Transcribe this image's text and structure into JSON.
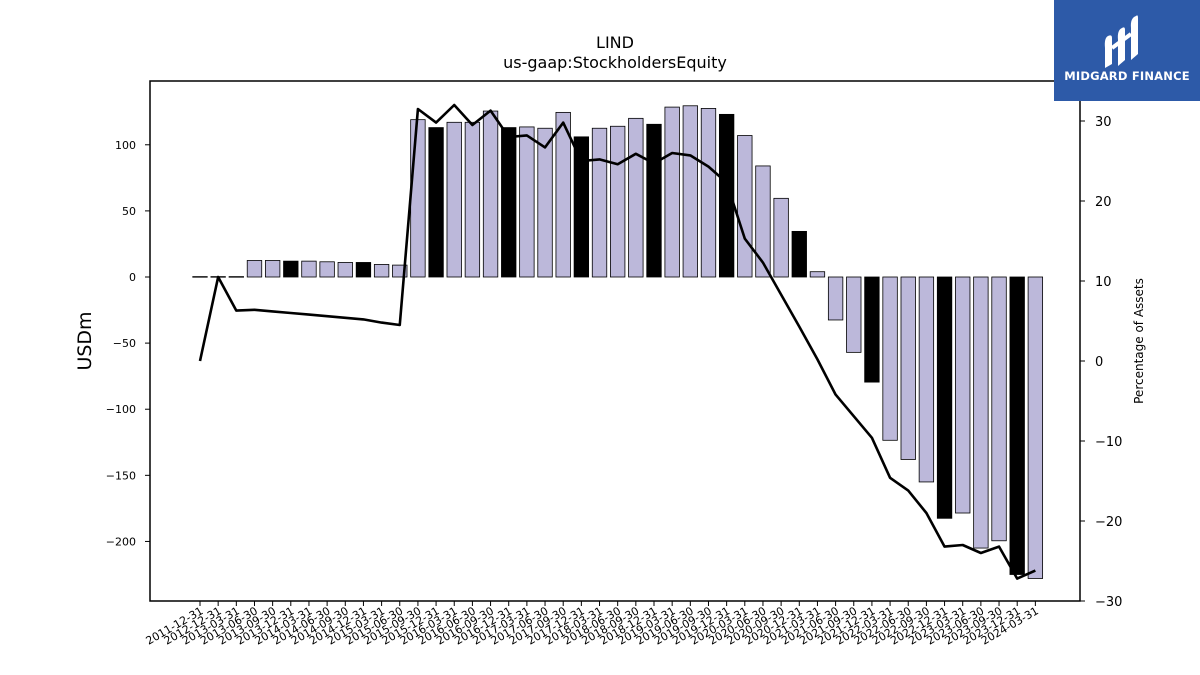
{
  "chart_data": {
    "type": "bar+line",
    "title": "LIND",
    "subtitle": "us-gaap:StockholdersEquity",
    "ylabel": "USDm",
    "y2label": "Percentage of Assets",
    "ylim": [
      -245,
      148
    ],
    "y2lim": [
      -30,
      35
    ],
    "yticks": [
      100,
      50,
      0,
      -50,
      -100,
      -150,
      -200
    ],
    "y2ticks": [
      30,
      20,
      10,
      0,
      -10,
      -20,
      -30
    ],
    "categories": [
      "2011-12-31",
      "2012-12-31",
      "2013-03-31",
      "2013-06-30",
      "2013-09-30",
      "2013-12-31",
      "2014-03-31",
      "2014-06-30",
      "2014-09-30",
      "2014-12-31",
      "2015-03-31",
      "2015-06-30",
      "2015-09-30",
      "2015-12-31",
      "2016-03-31",
      "2016-06-30",
      "2016-09-30",
      "2016-12-31",
      "2017-03-31",
      "2017-06-30",
      "2017-09-30",
      "2017-12-31",
      "2018-03-31",
      "2018-06-30",
      "2018-09-30",
      "2018-12-31",
      "2019-03-31",
      "2019-06-30",
      "2019-09-30",
      "2019-12-31",
      "2020-03-31",
      "2020-06-30",
      "2020-09-30",
      "2020-12-31",
      "2021-03-31",
      "2021-06-30",
      "2021-09-30",
      "2021-12-31",
      "2022-03-31",
      "2022-06-30",
      "2022-09-30",
      "2022-12-31",
      "2023-03-31",
      "2023-06-30",
      "2023-09-30",
      "2023-12-31",
      "2024-03-31"
    ],
    "series": [
      {
        "kind": "bar",
        "values": [
          0.3,
          0.3,
          0.3,
          12.5,
          12.5,
          12,
          12,
          11.5,
          11,
          11,
          9.5,
          9,
          119,
          113,
          117,
          117,
          125.5,
          113,
          113.5,
          112.5,
          124.5,
          106,
          112.5,
          114,
          120,
          115.5,
          128.5,
          129.5,
          127.5,
          123,
          107,
          84,
          59.5,
          34.5,
          4,
          -32.5,
          -57,
          -79.5,
          -123.5,
          -138,
          -155,
          -182.5,
          -178.5,
          -205,
          -199.5,
          -225,
          -228
        ],
        "highlight": [
          false,
          false,
          false,
          false,
          false,
          true,
          false,
          false,
          false,
          true,
          false,
          false,
          false,
          true,
          false,
          false,
          false,
          true,
          false,
          false,
          false,
          true,
          false,
          false,
          false,
          true,
          false,
          false,
          false,
          true,
          false,
          false,
          false,
          true,
          false,
          false,
          false,
          true,
          false,
          false,
          false,
          true,
          false,
          false,
          false,
          true,
          false
        ]
      },
      {
        "kind": "line",
        "axis": "right",
        "values": [
          0,
          10.5,
          6.3,
          6.4,
          6.2,
          6.0,
          5.8,
          5.6,
          5.4,
          5.2,
          4.8,
          4.5,
          31.5,
          29.8,
          32.0,
          29.5,
          31.3,
          28.0,
          28.2,
          26.7,
          29.8,
          25.0,
          25.2,
          24.6,
          25.9,
          24.7,
          26.0,
          25.7,
          24.3,
          22.3,
          15.3,
          12.3,
          8.3,
          4.3,
          0.2,
          -4.2,
          -6.9,
          -9.6,
          -14.6,
          -16.2,
          -19.0,
          -23.2,
          -23.0,
          -24.0,
          -23.2,
          -27.2,
          -26.2
        ]
      }
    ],
    "colors": {
      "bar": "#bcb8da",
      "bar_highlight": "#000000",
      "line": "#000000",
      "logo_bg": "#2d5aa8"
    }
  },
  "logo": {
    "text": "MIDGARD FINANCE",
    "icon": "midgard-logo-icon"
  }
}
